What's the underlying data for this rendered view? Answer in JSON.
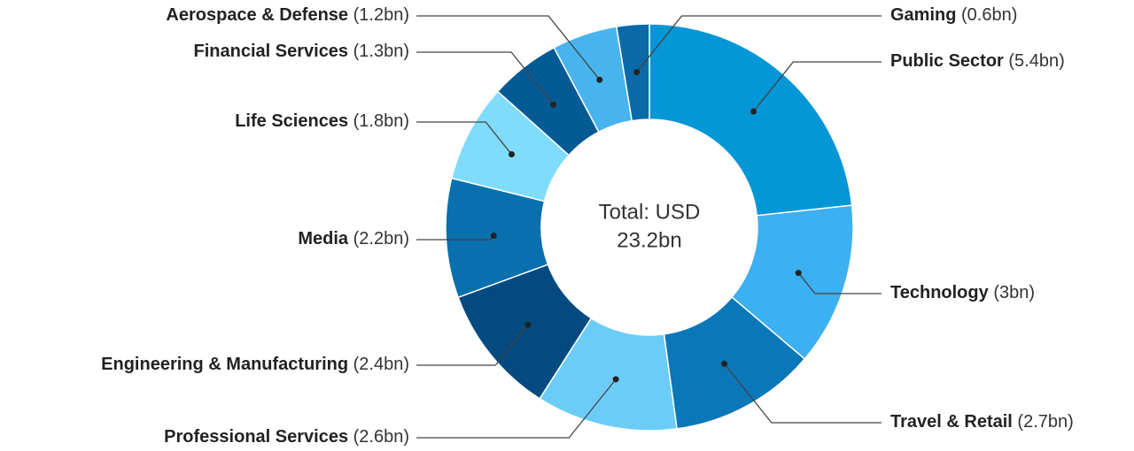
{
  "chart_data": {
    "type": "donut",
    "categories": [
      "Public Sector",
      "Technology",
      "Travel & Retail",
      "Professional Services",
      "Engineering & Manufacturing",
      "Media",
      "Life Sciences",
      "Financial Services",
      "Aerospace & Defense",
      "Gaming"
    ],
    "values": [
      5.4,
      3,
      2.7,
      2.6,
      2.4,
      2.2,
      1.8,
      1.3,
      1.2,
      0.6
    ],
    "value_labels": [
      "(5.4bn)",
      "(3bn)",
      "(2.7bn)",
      "(2.6bn)",
      "(2.4bn)",
      "(2.2bn)",
      "(1.8bn)",
      "(1.3bn)",
      "(1.2bn)",
      "(0.6bn)"
    ],
    "colors": [
      "#0596d6",
      "#3cb0f0",
      "#0a77b8",
      "#6cccf8",
      "#034a80",
      "#0a6fad",
      "#7fdcfb",
      "#045a94",
      "#48b4ee",
      "#0a6aa8"
    ],
    "center_text": [
      "Total: USD",
      "23.2bn"
    ]
  }
}
